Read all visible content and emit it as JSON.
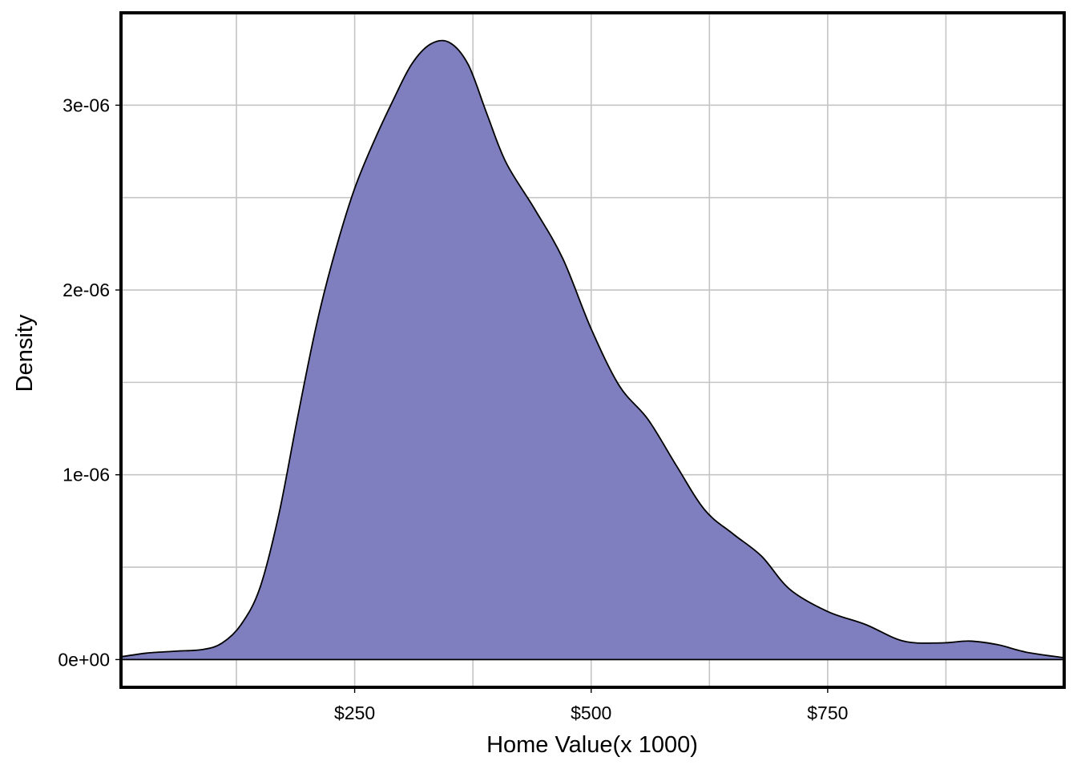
{
  "chart_data": {
    "type": "area",
    "xlabel": "Home Value(x 1000)",
    "ylabel": "Density",
    "x_tick_labels": [
      "$250",
      "$500",
      "$750"
    ],
    "x_ticks": [
      250000,
      500000,
      750000
    ],
    "x_minor_grid": [
      125000,
      375000,
      625000,
      875000
    ],
    "y_tick_labels": [
      "0e+00",
      "1e-06",
      "2e-06",
      "3e-06"
    ],
    "y_ticks": [
      0,
      1e-06,
      2e-06,
      3e-06
    ],
    "y_minor_grid": [
      5e-07,
      1.5e-06,
      2.5e-06
    ],
    "xlim": [
      3000,
      1000000
    ],
    "ylim": [
      -1.5e-07,
      3.5e-06
    ],
    "fill_color": "#7f7fbf",
    "line_color": "#000000",
    "grid": true,
    "series": [
      {
        "x": [
          3000,
          30000,
          60000,
          90000,
          110000,
          130000,
          150000,
          170000,
          190000,
          210000,
          230000,
          250000,
          270000,
          290000,
          310000,
          330000,
          350000,
          370000,
          390000,
          410000,
          440000,
          470000,
          500000,
          530000,
          560000,
          590000,
          620000,
          650000,
          680000,
          710000,
          750000,
          790000,
          830000,
          870000,
          900000,
          930000,
          960000,
          1000000
        ],
        "y": [
          1.5e-08,
          3.5e-08,
          4.5e-08,
          5.5e-08,
          9e-08,
          1.9e-07,
          3.9e-07,
          7.9e-07,
          1.32e-06,
          1.82e-06,
          2.22e-06,
          2.55e-06,
          2.8e-06,
          3.02e-06,
          3.22e-06,
          3.33e-06,
          3.34e-06,
          3.22e-06,
          2.95e-06,
          2.69e-06,
          2.44e-06,
          2.17e-06,
          1.79e-06,
          1.48e-06,
          1.3e-06,
          1.05e-06,
          8.1e-07,
          6.8e-07,
          5.6e-07,
          3.8e-07,
          2.6e-07,
          1.9e-07,
          1e-07,
          9e-08,
          1e-07,
          8e-08,
          4e-08,
          1e-08
        ]
      }
    ]
  }
}
